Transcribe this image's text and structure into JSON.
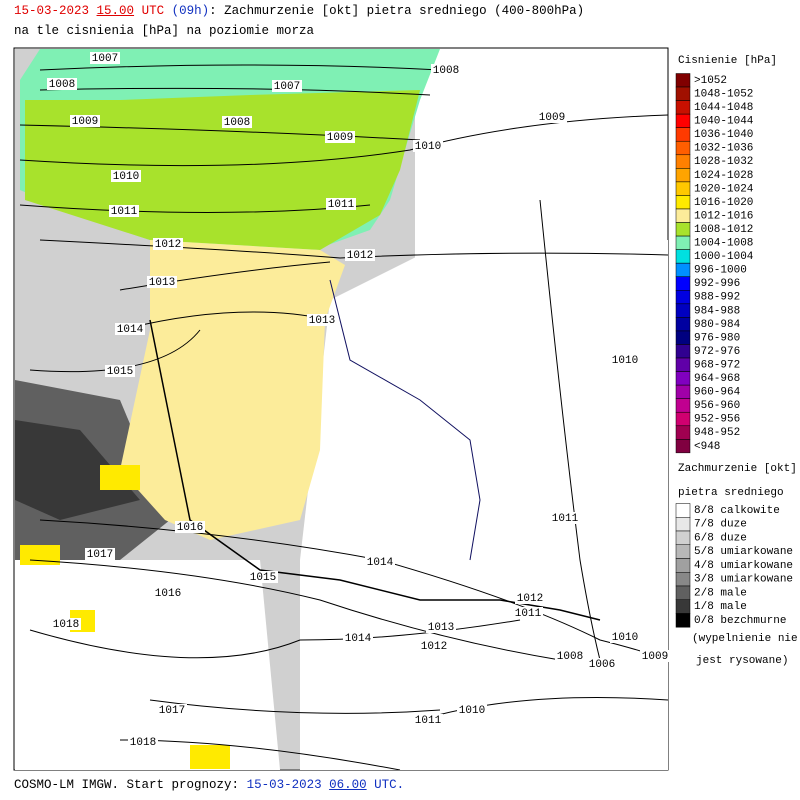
{
  "header": {
    "line1": {
      "date": "15-03-2023",
      "hour": "15.00",
      "utc": "UTC",
      "lead": "(09h)",
      "text": ": Zachmurzenie [okt] pietra sredniego (400-800hPa)"
    },
    "line2": "na tle cisnienia [hPa] na poziomie morza"
  },
  "pressure_legend": {
    "title": "Cisnienie [hPa]",
    "items": [
      {
        "label": ">1052",
        "color": "#800000"
      },
      {
        "label": "1048-1052",
        "color": "#a01000"
      },
      {
        "label": "1044-1048",
        "color": "#c81000"
      },
      {
        "label": "1040-1044",
        "color": "#ff0000"
      },
      {
        "label": "1036-1040",
        "color": "#ff3a00"
      },
      {
        "label": "1032-1036",
        "color": "#ff5e00"
      },
      {
        "label": "1028-1032",
        "color": "#ff8000"
      },
      {
        "label": "1024-1028",
        "color": "#ffa400"
      },
      {
        "label": "1020-1024",
        "color": "#ffc800"
      },
      {
        "label": "1016-1020",
        "color": "#ffea00"
      },
      {
        "label": "1012-1016",
        "color": "#fcec9a"
      },
      {
        "label": "1008-1012",
        "color": "#a8e22c"
      },
      {
        "label": "1004-1008",
        "color": "#7ff0b4"
      },
      {
        "label": "1000-1004",
        "color": "#00e0e0"
      },
      {
        "label": "996-1000",
        "color": "#0090ff"
      },
      {
        "label": "992-996",
        "color": "#0000ff"
      },
      {
        "label": "988-992",
        "color": "#0000e0"
      },
      {
        "label": "984-988",
        "color": "#0000c0"
      },
      {
        "label": "980-984",
        "color": "#0000a0"
      },
      {
        "label": "976-980",
        "color": "#000080"
      },
      {
        "label": "972-976",
        "color": "#300090"
      },
      {
        "label": "968-972",
        "color": "#6000a8"
      },
      {
        "label": "964-968",
        "color": "#8000c0"
      },
      {
        "label": "960-964",
        "color": "#a000a8"
      },
      {
        "label": "956-960",
        "color": "#c00090"
      },
      {
        "label": "952-956",
        "color": "#d00070"
      },
      {
        "label": "948-952",
        "color": "#a00050"
      },
      {
        "label": "<948",
        "color": "#800040"
      }
    ]
  },
  "cloud_legend": {
    "title": [
      "Zachmurzenie [okt]",
      "pietra sredniego"
    ],
    "items": [
      {
        "label": "8/8 calkowite",
        "color": "#ffffff"
      },
      {
        "label": "7/8 duze",
        "color": "#e8e8e8"
      },
      {
        "label": "6/8 duze",
        "color": "#d0d0d0"
      },
      {
        "label": "5/8 umiarkowane",
        "color": "#b8b8b8"
      },
      {
        "label": "4/8 umiarkowane",
        "color": "#a0a0a0"
      },
      {
        "label": "3/8 umiarkowane",
        "color": "#888888"
      },
      {
        "label": "2/8 male",
        "color": "#606060"
      },
      {
        "label": "1/8 male",
        "color": "#383838"
      },
      {
        "label": "0/8 bezchmurne",
        "color": "#000000"
      }
    ],
    "note": [
      "(wypelnienie nie",
      "jest rysowane)"
    ]
  },
  "map": {
    "isobar_labels": [
      "1007",
      "1008",
      "1007",
      "1008",
      "1009",
      "1008",
      "1009",
      "1009",
      "1010",
      "1010",
      "1011",
      "1011",
      "1012",
      "1012",
      "1013",
      "1013",
      "1014",
      "1015",
      "1010",
      "1011",
      "1016",
      "1017",
      "1014",
      "1015",
      "1016",
      "1012",
      "1011",
      "1018",
      "1013",
      "1014",
      "1012",
      "1010",
      "1009",
      "1008",
      "1006",
      "1017",
      "1011",
      "1010",
      "1018"
    ]
  },
  "footer": {
    "text": "COSMO-LM IMGW. Start prognozy:",
    "date": "15-03-2023",
    "hour": "06.00",
    "utc": "UTC."
  }
}
